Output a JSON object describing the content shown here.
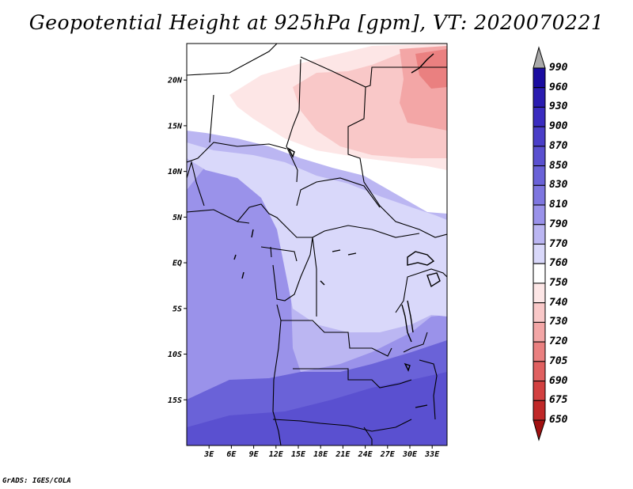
{
  "title": "Geopotential Height at 925hPa [gpm], VT: 2020070221",
  "footer": "GrADS: IGES/COLA",
  "map": {
    "lon_range": [
      0,
      35
    ],
    "lat_range": [
      -20,
      24
    ],
    "lat_ticks": [
      "20N",
      "15N",
      "10N",
      "5N",
      "EQ",
      "5S",
      "10S",
      "15S"
    ],
    "lon_ticks": [
      "3E",
      "6E",
      "9E",
      "12E",
      "15E",
      "18E",
      "21E",
      "24E",
      "27E",
      "30E",
      "33E"
    ]
  },
  "colorbar": {
    "levels": [
      "990",
      "960",
      "930",
      "900",
      "870",
      "850",
      "830",
      "810",
      "790",
      "770",
      "760",
      "750",
      "740",
      "730",
      "720",
      "705",
      "690",
      "675",
      "650"
    ],
    "colors": [
      "#1a0ca0",
      "#2a1cb0",
      "#3a2cc0",
      "#4a3ec8",
      "#5a50d0",
      "#6a62d8",
      "#7e76e0",
      "#9a92ea",
      "#bbb6f2",
      "#d9d8fa",
      "#ffffff",
      "#fde6e6",
      "#f9c8c8",
      "#f3a6a6",
      "#ea8080",
      "#e06060",
      "#d24040",
      "#c02828",
      "#a01010"
    ]
  }
}
